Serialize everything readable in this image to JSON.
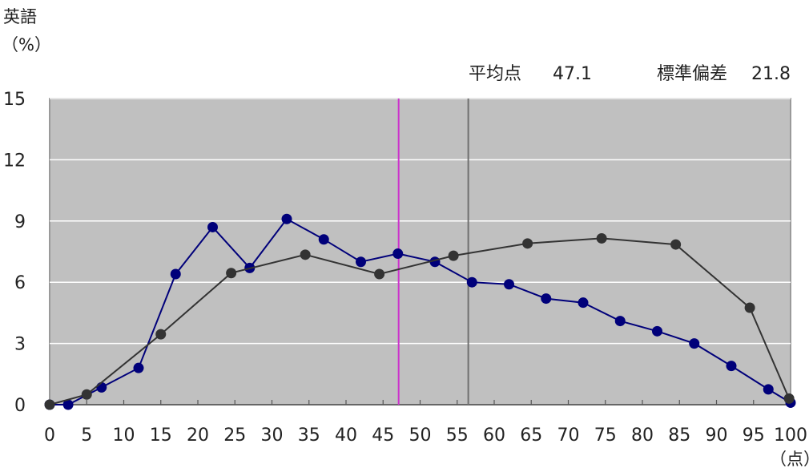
{
  "chart_data": {
    "type": "line",
    "ylabel": "英語",
    "ylabel_unit": "（%）",
    "xlabel_unit": "（点）",
    "xlim": [
      0,
      100
    ],
    "ylim": [
      0,
      15
    ],
    "x_ticks": [
      0,
      5,
      10,
      15,
      20,
      25,
      30,
      35,
      40,
      45,
      50,
      55,
      60,
      65,
      70,
      75,
      80,
      85,
      90,
      95,
      100
    ],
    "y_ticks": [
      0,
      3,
      6,
      9,
      12,
      15
    ],
    "grid": true,
    "stats": {
      "mean_label": "平均点",
      "mean_value": "47.1",
      "sd_label": "標準偏差",
      "sd_value": "21.8"
    },
    "reference_lines": [
      {
        "x": 47.1,
        "color": "#cc33cc"
      },
      {
        "x": 56.5,
        "color": "#707070"
      }
    ],
    "series": [
      {
        "color": "#00007a",
        "x": [
          0,
          2.5,
          7,
          12,
          17,
          22,
          27,
          32,
          37,
          42,
          47,
          52,
          57,
          62,
          67,
          72,
          77,
          82,
          87,
          92,
          97,
          100
        ],
        "y": [
          0,
          0,
          0.85,
          1.8,
          6.4,
          8.7,
          6.7,
          9.1,
          8.1,
          7.0,
          7.4,
          7.0,
          6.0,
          5.9,
          5.2,
          5.0,
          4.1,
          3.6,
          3.0,
          1.9,
          0.75,
          0.1
        ]
      },
      {
        "color": "#333333",
        "x": [
          0,
          5,
          15,
          24.5,
          34.5,
          44.5,
          54.5,
          64.5,
          74.5,
          84.5,
          94.5,
          99.8
        ],
        "y": [
          0,
          0.5,
          3.45,
          6.45,
          7.35,
          6.4,
          7.3,
          7.9,
          8.15,
          7.85,
          4.75,
          0.3
        ]
      }
    ]
  }
}
